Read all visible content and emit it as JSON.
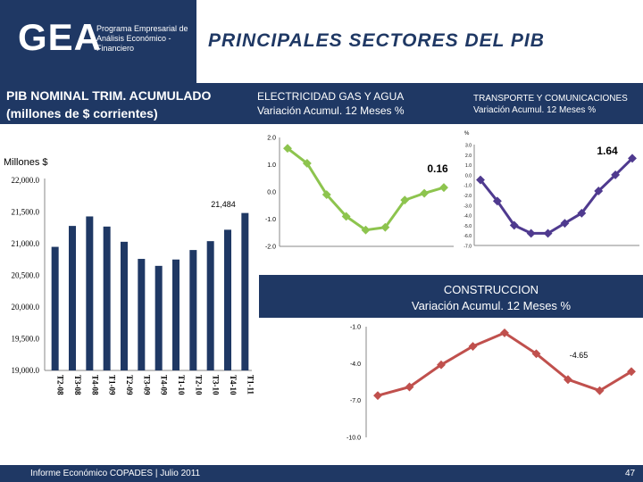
{
  "header": {
    "logo": "GEA",
    "logo_subtitle": "Programa Empresarial de Análisis Económico - Financiero",
    "title": "PRINCIPALES SECTORES DEL PIB"
  },
  "band": {
    "left_line1": "PIB NOMINAL TRIM. ACUMULADO",
    "left_line2": "(millones de $ corrientes)",
    "mid_line1": "ELECTRICIDAD GAS Y AGUA",
    "mid_line2": "Variación Acumul. 12 Meses %",
    "right_line1": "TRANSPORTE Y COMUNICACIONES",
    "right_line2": "Variación Acumul. 12 Meses %"
  },
  "construccion_title": {
    "line1": "CONSTRUCCION",
    "line2": "Variación Acumul. 12 Meses %"
  },
  "footer": {
    "text": "Informe Económico COPADES  |  Julio 2011",
    "page": "47"
  },
  "colors": {
    "navy": "#1f3864",
    "bar": "#1f3864",
    "green": "#8dc44e",
    "purple": "#4f3a8f",
    "red": "#c0504d"
  },
  "chart_data": [
    {
      "id": "pib",
      "type": "bar",
      "ylabel": "Millones $",
      "categories": [
        "T2-08",
        "T3-08",
        "T4-08",
        "T1-09",
        "T2-09",
        "T3-09",
        "T4-09",
        "T1-10",
        "T2-10",
        "T3-10",
        "T4-10",
        "T1-11"
      ],
      "values": [
        20950,
        21280,
        21430,
        21270,
        21030,
        20760,
        20650,
        20750,
        20900,
        21040,
        21220,
        21484
      ],
      "ylim": [
        19000,
        22000
      ],
      "yticks": [
        19000,
        19500,
        20000,
        20500,
        21000,
        21500,
        22000
      ],
      "ytick_labels": [
        "19,000.0",
        "19,500.0",
        "20,000.0",
        "20,500.0",
        "21,000.0",
        "21,500.0",
        "22,000.0"
      ],
      "data_label": "21,484"
    },
    {
      "id": "electricidad",
      "type": "line",
      "title": "ELECTRICIDAD GAS Y AGUA",
      "values": [
        1.6,
        1.05,
        -0.1,
        -0.9,
        -1.4,
        -1.3,
        -0.3,
        -0.05,
        0.16
      ],
      "ylim": [
        -2,
        2
      ],
      "yticks": [
        -2,
        -1,
        0,
        1,
        2
      ],
      "ytick_labels": [
        "-2.0",
        "-1.0",
        "0.0",
        "1.0",
        "2.0"
      ],
      "data_label": "0.16"
    },
    {
      "id": "transporte",
      "type": "line",
      "title": "TRANSPORTE Y COMUNICACIONES",
      "unit_label": "%",
      "values": [
        -0.5,
        -2.6,
        -5.0,
        -5.8,
        -5.8,
        -4.8,
        -3.8,
        -1.6,
        0.0,
        1.64
      ],
      "ylim": [
        -7,
        3
      ],
      "yticks": [
        -7,
        -6,
        -5,
        -4,
        -3,
        -2,
        -1,
        0,
        1,
        2,
        3
      ],
      "ytick_labels": [
        "-7.0",
        "-6.0",
        "-5.0",
        "-4.0",
        "-3.0",
        "-2.0",
        "-1.0",
        "0.0",
        "1.0",
        "2.0",
        "3.0"
      ],
      "data_label": "1.64"
    },
    {
      "id": "construccion",
      "type": "line",
      "title": "CONSTRUCCION",
      "values": [
        -6.6,
        -5.9,
        -4.1,
        -2.6,
        -1.5,
        -3.2,
        -5.3,
        -6.2,
        -4.65
      ],
      "ylim": [
        -10,
        -1
      ],
      "yticks": [
        -10,
        -7,
        -4,
        -1
      ],
      "ytick_labels": [
        "-10.0",
        "-7.0",
        "-4.0",
        "-1.0"
      ],
      "data_label": "-4.65"
    }
  ]
}
